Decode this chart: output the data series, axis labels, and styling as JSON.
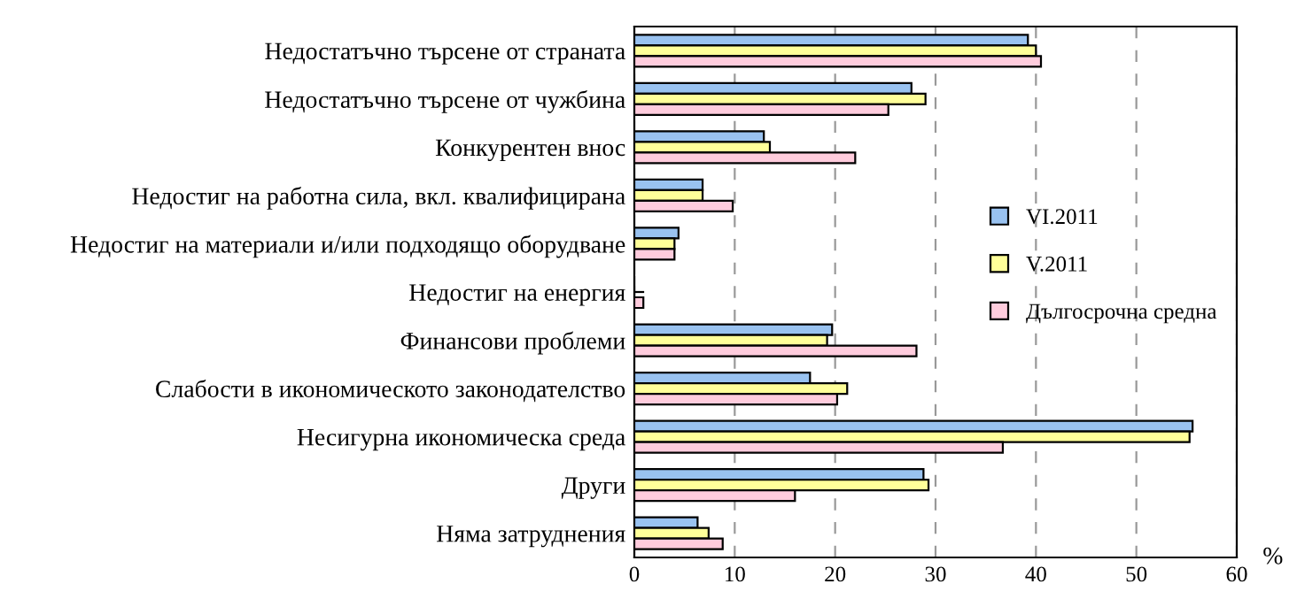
{
  "chart_data": {
    "type": "bar",
    "orientation": "horizontal",
    "xlabel": "%",
    "categories": [
      "Недостатъчно търсене от страната",
      "Недостатъчно търсене от чужбина",
      "Конкурентен внос",
      "Недостиг на работна сила, вкл. квалифицирана",
      "Недостиг на материали и/или подходящо оборудване",
      "Недостиг на енергия",
      "Финансови проблеми",
      "Слабости в икономическото законодателство",
      "Несигурна икономическа среда",
      "Други",
      "Няма затруднения"
    ],
    "series": [
      {
        "name": "VI.2011",
        "color": "#99c2f0",
        "values": [
          39.2,
          27.6,
          12.9,
          6.8,
          4.4,
          0,
          19.7,
          17.5,
          55.6,
          28.8,
          6.3
        ]
      },
      {
        "name": "V.2011",
        "color": "#ffff99",
        "values": [
          40.0,
          29.0,
          13.5,
          6.8,
          4.0,
          0,
          19.2,
          21.2,
          55.3,
          29.3,
          7.4
        ]
      },
      {
        "name": "Дългосрочна средна",
        "color": "#ffccdd",
        "values": [
          40.5,
          25.3,
          22.0,
          9.8,
          4.0,
          0.9,
          28.1,
          20.2,
          36.7,
          16.0,
          8.8
        ]
      }
    ],
    "xlim": [
      0,
      60
    ],
    "xticks": [
      0,
      10,
      20,
      30,
      40,
      50,
      60
    ],
    "grid": "x",
    "legend": "right"
  }
}
